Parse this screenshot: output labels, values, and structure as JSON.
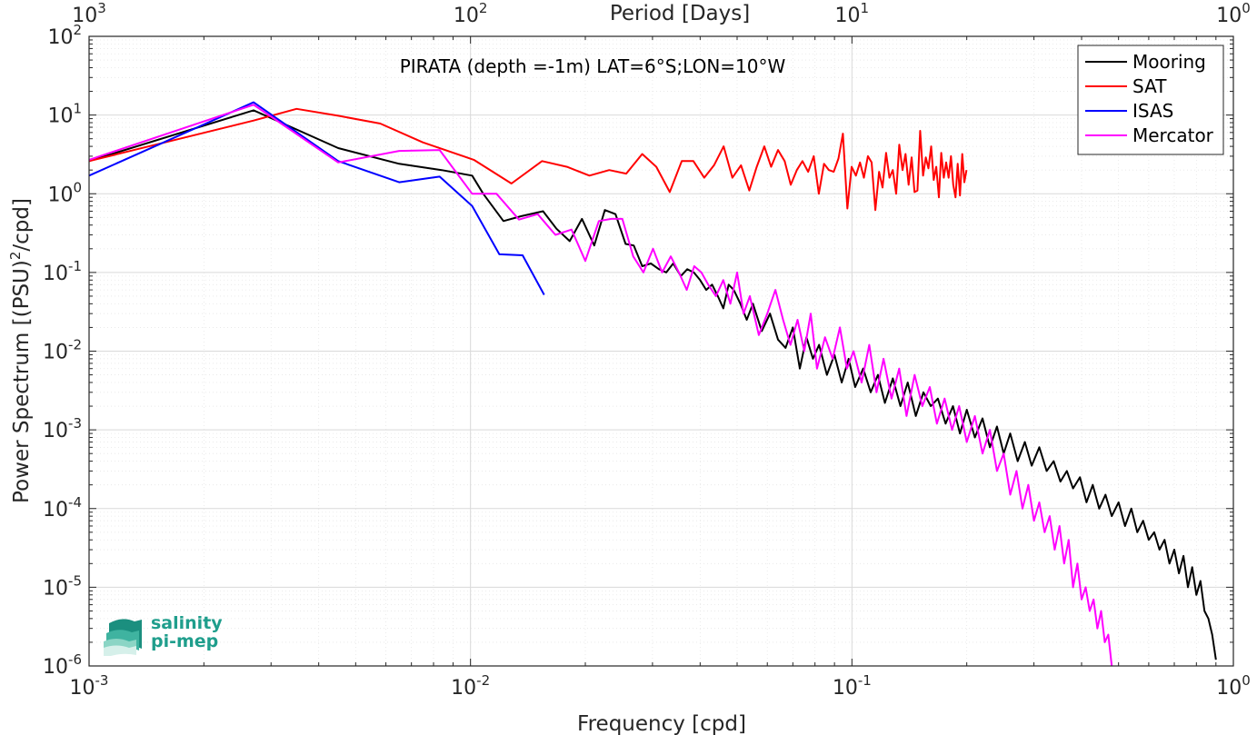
{
  "chart_data": {
    "type": "line",
    "title": "PIRATA (depth =-1m) LAT=6°S;LON=10°W",
    "xlabel": "Frequency [cpd]",
    "ylabel": "Power Spectrum [(PSU)",
    "ylabel_sup": "2",
    "ylabel_tail": "/cpd]",
    "top_xlabel": "Period [Days]",
    "xscale": "log",
    "yscale": "log",
    "xlim": [
      0.001,
      1
    ],
    "ylim": [
      1e-06,
      100
    ],
    "grid": true,
    "legend_position": "top-right",
    "x_ticks": [
      {
        "base": "10",
        "exp": "-3"
      },
      {
        "base": "10",
        "exp": "-2"
      },
      {
        "base": "10",
        "exp": "-1"
      },
      {
        "base": "10",
        "exp": "0"
      }
    ],
    "top_ticks": [
      {
        "base": "10",
        "exp": "3"
      },
      {
        "base": "10",
        "exp": "2"
      },
      {
        "base": "10",
        "exp": "1"
      },
      {
        "base": "10",
        "exp": "0"
      }
    ],
    "y_ticks": [
      {
        "base": "10",
        "exp": "2"
      },
      {
        "base": "10",
        "exp": "1"
      },
      {
        "base": "10",
        "exp": "0"
      },
      {
        "base": "10",
        "exp": "-1"
      },
      {
        "base": "10",
        "exp": "-2"
      },
      {
        "base": "10",
        "exp": "-3"
      },
      {
        "base": "10",
        "exp": "-4"
      },
      {
        "base": "10",
        "exp": "-5"
      },
      {
        "base": "10",
        "exp": "-6"
      }
    ],
    "series": [
      {
        "name": "Mooring",
        "color": "#000000",
        "x": [
          0.001,
          0.0027,
          0.0045,
          0.0065,
          0.0084,
          0.0101,
          0.0108,
          0.0122,
          0.0136,
          0.0155,
          0.0168,
          0.0182,
          0.0196,
          0.0211,
          0.0225,
          0.024,
          0.0255,
          0.0268,
          0.0282,
          0.0297,
          0.0312,
          0.0326,
          0.034,
          0.0356,
          0.037,
          0.0385,
          0.04,
          0.0415,
          0.043,
          0.0445,
          0.046,
          0.0475,
          0.049,
          0.051,
          0.053,
          0.055,
          0.058,
          0.061,
          0.064,
          0.067,
          0.07,
          0.073,
          0.076,
          0.079,
          0.082,
          0.086,
          0.09,
          0.094,
          0.098,
          0.102,
          0.107,
          0.112,
          0.117,
          0.122,
          0.128,
          0.134,
          0.14,
          0.147,
          0.154,
          0.161,
          0.168,
          0.176,
          0.184,
          0.192,
          0.2,
          0.21,
          0.22,
          0.23,
          0.24,
          0.25,
          0.26,
          0.272,
          0.284,
          0.296,
          0.31,
          0.324,
          0.338,
          0.352,
          0.366,
          0.38,
          0.396,
          0.412,
          0.428,
          0.445,
          0.462,
          0.48,
          0.5,
          0.52,
          0.54,
          0.56,
          0.58,
          0.6,
          0.62,
          0.64,
          0.66,
          0.68,
          0.7,
          0.72,
          0.74,
          0.76,
          0.78,
          0.8,
          0.82,
          0.84,
          0.86,
          0.88,
          0.9
        ],
        "y": [
          2.6,
          11.5,
          3.8,
          2.4,
          2.0,
          1.7,
          1.0,
          0.45,
          0.52,
          0.6,
          0.36,
          0.25,
          0.48,
          0.22,
          0.62,
          0.55,
          0.23,
          0.22,
          0.12,
          0.13,
          0.11,
          0.1,
          0.13,
          0.09,
          0.11,
          0.1,
          0.08,
          0.06,
          0.07,
          0.05,
          0.035,
          0.07,
          0.06,
          0.04,
          0.025,
          0.04,
          0.018,
          0.03,
          0.014,
          0.011,
          0.02,
          0.006,
          0.015,
          0.008,
          0.012,
          0.005,
          0.009,
          0.004,
          0.008,
          0.0035,
          0.006,
          0.003,
          0.005,
          0.0022,
          0.0045,
          0.002,
          0.004,
          0.0015,
          0.003,
          0.002,
          0.0025,
          0.0012,
          0.002,
          0.0009,
          0.0018,
          0.0008,
          0.0014,
          0.0006,
          0.0011,
          0.0005,
          0.0009,
          0.0004,
          0.0007,
          0.00035,
          0.0006,
          0.0003,
          0.0004,
          0.00022,
          0.0003,
          0.00018,
          0.00025,
          0.00012,
          0.0002,
          0.0001,
          0.00015,
          8e-05,
          0.00012,
          6e-05,
          0.0001,
          5e-05,
          7e-05,
          4e-05,
          5e-05,
          3e-05,
          4e-05,
          2e-05,
          3e-05,
          1.5e-05,
          2.5e-05,
          1e-05,
          1.8e-05,
          8e-06,
          1.2e-05,
          5e-06,
          4e-06,
          2.5e-06,
          1.2e-06
        ]
      },
      {
        "name": "SAT",
        "color": "#ff0000",
        "x": [
          0.001,
          0.0027,
          0.0035,
          0.0045,
          0.0058,
          0.0075,
          0.0102,
          0.0128,
          0.0154,
          0.0179,
          0.0205,
          0.0231,
          0.0256,
          0.0282,
          0.0307,
          0.0333,
          0.0358,
          0.0384,
          0.041,
          0.0435,
          0.0461,
          0.0486,
          0.0512,
          0.0538,
          0.0563,
          0.0589,
          0.0614,
          0.064,
          0.0666,
          0.0691,
          0.0717,
          0.0742,
          0.0768,
          0.0794,
          0.0819,
          0.0845,
          0.087,
          0.0896,
          0.0922,
          0.0947,
          0.0973,
          0.0998,
          0.1024,
          0.105,
          0.1075,
          0.1101,
          0.1126,
          0.1152,
          0.1178,
          0.1203,
          0.1229,
          0.1254,
          0.128,
          0.1306,
          0.1331,
          0.1357,
          0.1382,
          0.1408,
          0.1434,
          0.1459,
          0.1485,
          0.151,
          0.1536,
          0.1562,
          0.1587,
          0.1613,
          0.1638,
          0.1664,
          0.169,
          0.1715,
          0.1741,
          0.1766,
          0.1792,
          0.1818,
          0.1843,
          0.1869,
          0.1894,
          0.192,
          0.1946,
          0.1971,
          0.1997
        ],
        "y": [
          2.6,
          8.5,
          12.0,
          9.8,
          7.8,
          4.5,
          2.7,
          1.35,
          2.6,
          2.2,
          1.7,
          2.0,
          1.8,
          3.2,
          2.2,
          1.05,
          2.6,
          2.6,
          1.6,
          2.3,
          4.0,
          1.6,
          2.3,
          1.1,
          2.2,
          4.0,
          2.2,
          3.6,
          2.6,
          1.3,
          2.0,
          2.6,
          1.9,
          3.0,
          1.0,
          2.4,
          2.0,
          1.9,
          2.8,
          5.8,
          0.65,
          2.2,
          1.7,
          2.5,
          1.6,
          3.0,
          2.5,
          0.62,
          1.9,
          1.2,
          3.3,
          1.6,
          2.0,
          1.0,
          4.2,
          2.0,
          3.2,
          1.3,
          2.9,
          1.05,
          1.1,
          6.3,
          1.7,
          2.9,
          2.1,
          4.0,
          1.5,
          2.2,
          0.9,
          3.3,
          1.6,
          2.5,
          1.6,
          3.0,
          1.3,
          0.9,
          2.4,
          0.95,
          3.2,
          1.4,
          2.0
        ]
      },
      {
        "name": "ISAS",
        "color": "#0000ff",
        "x": [
          0.001,
          0.0027,
          0.0045,
          0.0065,
          0.0083,
          0.0101,
          0.0119,
          0.0137,
          0.0156
        ],
        "y": [
          1.7,
          14.5,
          2.6,
          1.4,
          1.65,
          0.7,
          0.17,
          0.165,
          0.052
        ]
      },
      {
        "name": "Mercator",
        "color": "#ff00ff",
        "x": [
          0.001,
          0.0027,
          0.0045,
          0.0065,
          0.0083,
          0.0101,
          0.0117,
          0.0134,
          0.015,
          0.0167,
          0.0184,
          0.02,
          0.0217,
          0.0234,
          0.025,
          0.0267,
          0.0284,
          0.0301,
          0.0318,
          0.0335,
          0.0352,
          0.0369,
          0.0386,
          0.0403,
          0.042,
          0.044,
          0.046,
          0.048,
          0.05,
          0.052,
          0.054,
          0.057,
          0.06,
          0.063,
          0.066,
          0.069,
          0.072,
          0.075,
          0.078,
          0.081,
          0.085,
          0.089,
          0.093,
          0.097,
          0.101,
          0.106,
          0.111,
          0.116,
          0.121,
          0.127,
          0.133,
          0.139,
          0.146,
          0.153,
          0.16,
          0.167,
          0.175,
          0.183,
          0.191,
          0.2,
          0.21,
          0.22,
          0.23,
          0.24,
          0.25,
          0.26,
          0.27,
          0.28,
          0.29,
          0.3,
          0.31,
          0.32,
          0.33,
          0.34,
          0.35,
          0.36,
          0.37,
          0.38,
          0.39,
          0.4,
          0.41,
          0.42,
          0.43,
          0.44,
          0.45,
          0.46,
          0.47,
          0.48
        ],
        "y": [
          2.7,
          13.5,
          2.5,
          3.5,
          3.6,
          1.0,
          1.0,
          0.47,
          0.55,
          0.3,
          0.35,
          0.14,
          0.45,
          0.48,
          0.48,
          0.16,
          0.1,
          0.2,
          0.1,
          0.16,
          0.1,
          0.06,
          0.12,
          0.1,
          0.07,
          0.05,
          0.08,
          0.04,
          0.1,
          0.03,
          0.05,
          0.016,
          0.03,
          0.06,
          0.025,
          0.012,
          0.025,
          0.01,
          0.03,
          0.006,
          0.015,
          0.008,
          0.02,
          0.006,
          0.01,
          0.004,
          0.012,
          0.003,
          0.008,
          0.0025,
          0.006,
          0.0015,
          0.005,
          0.002,
          0.0035,
          0.0012,
          0.0025,
          0.001,
          0.002,
          0.0007,
          0.0015,
          0.0005,
          0.001,
          0.0003,
          0.0005,
          0.00015,
          0.0003,
          0.0001,
          0.0002,
          7e-05,
          0.00012,
          5e-05,
          8e-05,
          3e-05,
          6e-05,
          2e-05,
          4e-05,
          1e-05,
          2e-05,
          7e-06,
          1e-05,
          5e-06,
          7e-06,
          3e-06,
          5e-06,
          2e-06,
          2.5e-06,
          1e-06
        ]
      }
    ]
  },
  "logo": {
    "line1": "salinity",
    "line2": "pi-mep"
  }
}
